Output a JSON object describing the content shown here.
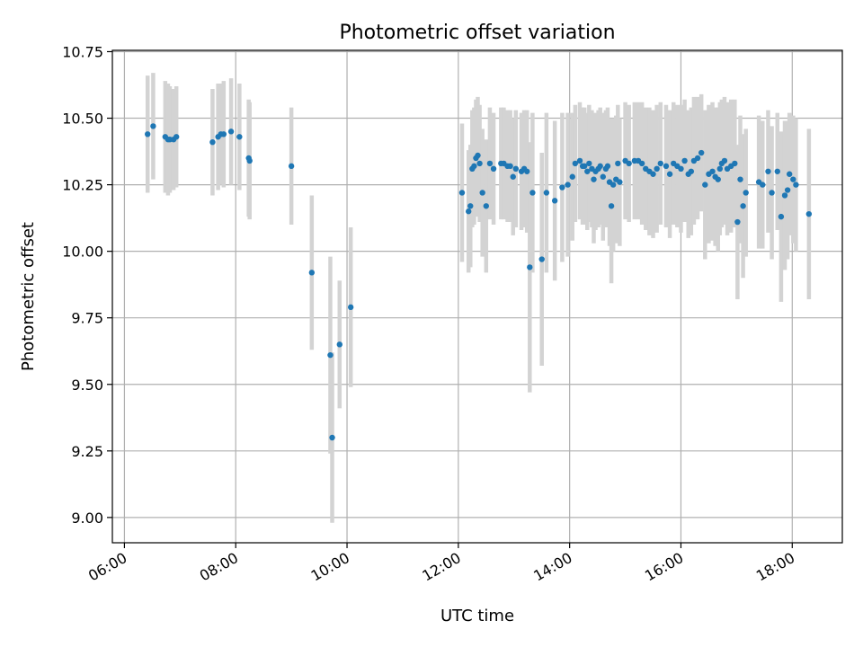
{
  "chart_data": {
    "type": "scatter",
    "title": "Photometric offset variation",
    "xlabel": "UTC time",
    "ylabel": "Photometric offset",
    "x_ticks": [
      "06:00",
      "08:00",
      "10:00",
      "12:00",
      "14:00",
      "16:00",
      "18:00"
    ],
    "y_ticks": [
      "9.00",
      "9.25",
      "9.50",
      "9.75",
      "10.00",
      "10.25",
      "10.50",
      "10.75"
    ],
    "xlim": [
      "05:47",
      "18:54"
    ],
    "ylim": [
      8.905,
      10.755
    ],
    "grid": true,
    "point_color": "#1f77b4",
    "errorbar_color": "#d3d3d3",
    "series": [
      {
        "x": [
          "06:25",
          "06:31",
          "06:44",
          "06:47",
          "06:49",
          "06:53",
          "06:56",
          "07:35",
          "07:41",
          "07:44",
          "07:47",
          "07:55",
          "08:04",
          "08:14",
          "08:15",
          "09:00",
          "09:22",
          "09:42",
          "09:44",
          "09:52",
          "10:04",
          "12:04",
          "12:11",
          "12:13",
          "12:15",
          "12:17",
          "12:19",
          "12:21",
          "12:23",
          "12:26",
          "12:30",
          "12:34",
          "12:38",
          "12:46",
          "12:49",
          "12:53",
          "12:56",
          "12:59",
          "13:02",
          "13:08",
          "13:11",
          "13:14",
          "13:17",
          "13:20",
          "13:30",
          "13:35",
          "13:44",
          "13:52",
          "13:58",
          "14:03",
          "14:06",
          "14:11",
          "14:14",
          "14:16",
          "14:19",
          "14:21",
          "14:24",
          "14:26",
          "14:28",
          "14:31",
          "14:33",
          "14:36",
          "14:39",
          "14:41",
          "14:43",
          "14:45",
          "14:47",
          "14:50",
          "14:52",
          "14:54",
          "15:00",
          "15:04",
          "15:10",
          "15:14",
          "15:18",
          "15:22",
          "15:26",
          "15:30",
          "15:34",
          "15:38",
          "15:44",
          "15:48",
          "15:52",
          "15:56",
          "16:00",
          "16:04",
          "16:08",
          "16:11",
          "16:14",
          "16:18",
          "16:22",
          "16:26",
          "16:30",
          "16:34",
          "16:37",
          "16:40",
          "16:42",
          "16:44",
          "16:47",
          "16:50",
          "16:54",
          "16:58",
          "17:01",
          "17:04",
          "17:07",
          "17:10",
          "17:24",
          "17:28",
          "17:34",
          "17:38",
          "17:44",
          "17:48",
          "17:52",
          "17:55",
          "17:57",
          "18:01",
          "18:04",
          "18:18"
        ],
        "y": [
          10.44,
          10.47,
          10.43,
          10.42,
          10.42,
          10.42,
          10.43,
          10.41,
          10.43,
          10.44,
          10.44,
          10.45,
          10.43,
          10.35,
          10.34,
          10.32,
          9.92,
          9.61,
          9.3,
          9.65,
          9.79,
          10.22,
          10.15,
          10.17,
          10.31,
          10.32,
          10.35,
          10.36,
          10.33,
          10.22,
          10.17,
          10.33,
          10.31,
          10.33,
          10.33,
          10.32,
          10.32,
          10.28,
          10.31,
          10.3,
          10.31,
          10.3,
          9.94,
          10.22,
          9.97,
          10.22,
          10.19,
          10.24,
          10.25,
          10.28,
          10.33,
          10.34,
          10.32,
          10.32,
          10.3,
          10.33,
          10.31,
          10.27,
          10.3,
          10.31,
          10.32,
          10.28,
          10.31,
          10.32,
          10.26,
          10.17,
          10.25,
          10.27,
          10.33,
          10.26,
          10.34,
          10.33,
          10.34,
          10.34,
          10.33,
          10.31,
          10.3,
          10.29,
          10.31,
          10.33,
          10.32,
          10.29,
          10.33,
          10.32,
          10.31,
          10.34,
          10.29,
          10.3,
          10.34,
          10.35,
          10.37,
          10.25,
          10.29,
          10.3,
          10.28,
          10.27,
          10.31,
          10.33,
          10.34,
          10.31,
          10.32,
          10.33,
          10.11,
          10.27,
          10.17,
          10.22,
          10.26,
          10.25,
          10.3,
          10.22,
          10.3,
          10.13,
          10.21,
          10.23,
          10.29,
          10.27,
          10.25,
          10.14
        ],
        "yerr": [
          0.22,
          0.2,
          0.21,
          0.21,
          0.2,
          0.19,
          0.19,
          0.2,
          0.2,
          0.19,
          0.2,
          0.2,
          0.2,
          0.22,
          0.22,
          0.22,
          0.29,
          0.37,
          0.32,
          0.24,
          0.3,
          0.26,
          0.23,
          0.23,
          0.22,
          0.22,
          0.22,
          0.22,
          0.22,
          0.24,
          0.25,
          0.21,
          0.21,
          0.21,
          0.21,
          0.21,
          0.21,
          0.22,
          0.22,
          0.22,
          0.22,
          0.23,
          0.47,
          0.3,
          0.4,
          0.3,
          0.3,
          0.28,
          0.27,
          0.24,
          0.22,
          0.22,
          0.22,
          0.22,
          0.22,
          0.22,
          0.22,
          0.24,
          0.22,
          0.22,
          0.22,
          0.24,
          0.22,
          0.22,
          0.24,
          0.29,
          0.25,
          0.24,
          0.22,
          0.24,
          0.22,
          0.22,
          0.22,
          0.22,
          0.23,
          0.23,
          0.24,
          0.24,
          0.24,
          0.23,
          0.23,
          0.24,
          0.23,
          0.23,
          0.24,
          0.23,
          0.24,
          0.24,
          0.24,
          0.23,
          0.22,
          0.28,
          0.26,
          0.26,
          0.26,
          0.27,
          0.25,
          0.24,
          0.24,
          0.25,
          0.25,
          0.24,
          0.29,
          0.24,
          0.27,
          0.24,
          0.25,
          0.24,
          0.23,
          0.25,
          0.22,
          0.32,
          0.28,
          0.26,
          0.23,
          0.24,
          0.25,
          0.32
        ]
      }
    ]
  }
}
